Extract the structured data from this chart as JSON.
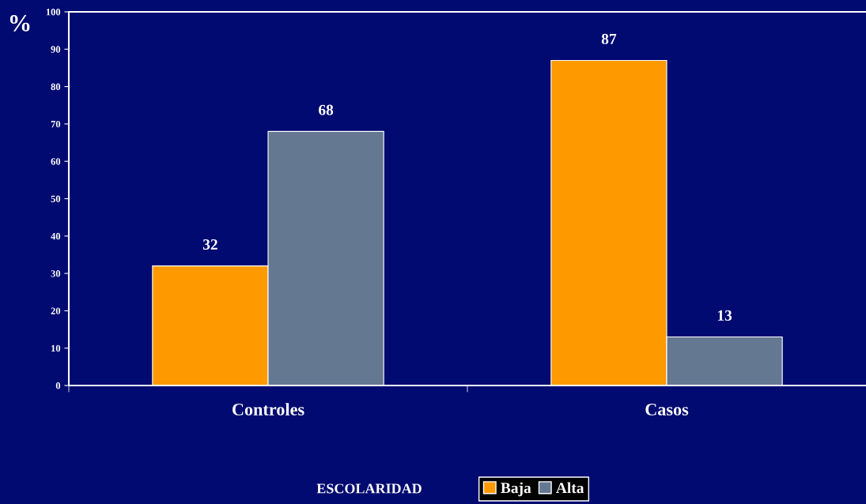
{
  "chart_data": {
    "type": "bar",
    "ylabel": "%",
    "legend_title": "ESCOLARIDAD",
    "categories": [
      "Controles",
      "Casos"
    ],
    "series": [
      {
        "name": "Baja",
        "color": "#ff9900",
        "values": [
          32,
          87
        ]
      },
      {
        "name": "Alta",
        "color": "#647892",
        "values": [
          68,
          13
        ]
      }
    ],
    "ylim": [
      0,
      100
    ],
    "yticks": [
      0,
      10,
      20,
      30,
      40,
      50,
      60,
      70,
      80,
      90,
      100
    ],
    "data_labels": true,
    "grid": false,
    "legend": "bottom"
  }
}
